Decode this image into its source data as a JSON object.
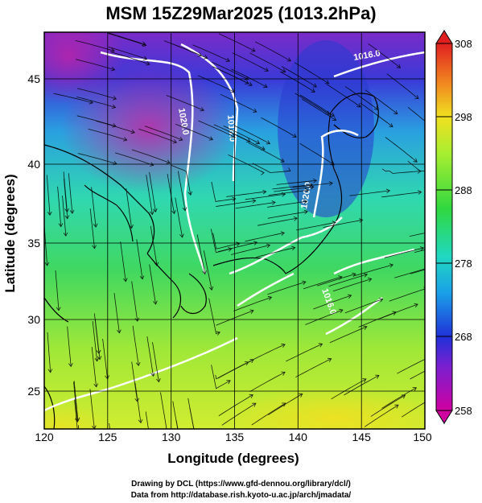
{
  "title": "MSM 15Z29Mar2025 (1013.2hPa)",
  "xlabel": "Longitude (degrees)",
  "ylabel": "Latitude  (degrees)",
  "x_ticks": [
    "120",
    "125",
    "130",
    "135",
    "140",
    "145",
    "150"
  ],
  "y_ticks": [
    "25",
    "30",
    "35",
    "40",
    "45"
  ],
  "x_range": [
    120,
    150
  ],
  "y_range": [
    22.5,
    48
  ],
  "colorbar": {
    "ticks": [
      "308",
      "298",
      "288",
      "278",
      "268",
      "258"
    ],
    "range": [
      258,
      308
    ],
    "colors": [
      "#d40080",
      "#8a0cc2",
      "#2a2ad8",
      "#20a8e0",
      "#28d8b8",
      "#38d858",
      "#a8ee30",
      "#f0e020",
      "#f08020",
      "#e02020"
    ]
  },
  "contours": [
    "1020.0",
    "1016.0",
    "1016.0",
    "1020.0",
    "1016.0"
  ],
  "credit_line1": "Drawing by DCL (https://www.gfd-dennou.org/library/dcl/)",
  "credit_line2": "Data from http://database.rish.kyoto-u.ac.jp/arch/jmadata/"
}
